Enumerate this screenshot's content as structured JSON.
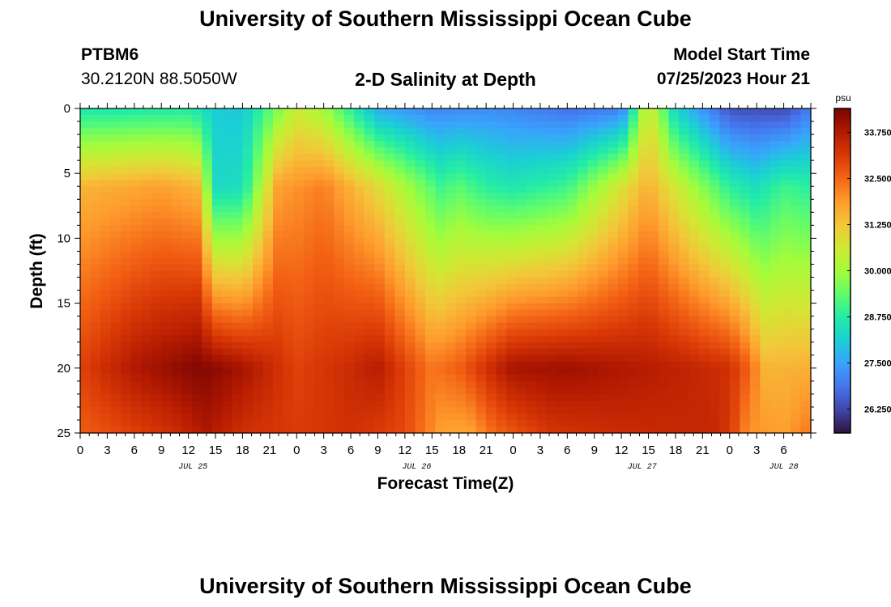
{
  "header": {
    "title": "University of Southern Mississippi Ocean Cube",
    "station_id": "PTBM6",
    "station_coords": "30.2120N  88.5050W",
    "plot_subtitle": "2-D Salinity at Depth",
    "model_start_label": "Model Start Time",
    "model_start_value": "07/25/2023 Hour 21"
  },
  "footer": {
    "title": "University of Southern Mississippi Ocean Cube"
  },
  "chart_data": {
    "type": "heatmap",
    "title": "2-D Salinity at Depth",
    "xlabel": "Forecast Time(Z)",
    "ylabel": "Depth (ft)",
    "x_unit": "hours since model start",
    "x_range": [
      0,
      81
    ],
    "y_range": [
      0,
      25
    ],
    "y_inverted": true,
    "x_tick_labels": [
      "0",
      "3",
      "6",
      "9",
      "12",
      "15",
      "18",
      "21",
      "0",
      "3",
      "6",
      "9",
      "12",
      "15",
      "18",
      "21",
      "0",
      "3",
      "6",
      "9",
      "12",
      "15",
      "18",
      "21",
      "0",
      "3",
      "6"
    ],
    "y_tick_labels": [
      "0",
      "5",
      "10",
      "15",
      "20",
      "25"
    ],
    "y_tick_values": [
      0,
      5,
      10,
      15,
      20,
      25
    ],
    "date_labels": [
      {
        "text": "JUL 25",
        "hour": 12.5
      },
      {
        "text": "JUL 26",
        "hour": 37.3
      },
      {
        "text": "JUL 27",
        "hour": 62.3
      },
      {
        "text": "JUL 28",
        "hour": 78.0
      }
    ],
    "colorbar": {
      "unit": "psu",
      "min": 25.6,
      "max": 34.4,
      "tick_labels": [
        "33.750",
        "32.500",
        "31.250",
        "30.000",
        "28.750",
        "27.500",
        "26.250"
      ],
      "tick_values": [
        33.75,
        32.5,
        31.25,
        30.0,
        28.75,
        27.5,
        26.25
      ],
      "colormap": [
        "#30123b",
        "#4145ab",
        "#4675ed",
        "#39a2fc",
        "#1bcfd4",
        "#24eca6",
        "#61fc6c",
        "#a4fc3b",
        "#d1e834",
        "#f3c63a",
        "#fe9b2d",
        "#f36315",
        "#d93806",
        "#b11901",
        "#7a0402"
      ]
    },
    "grid_cols": 72,
    "grid_rows": 50,
    "note": "Salinity field sampled from the depicted heatmap (psu); values interpolated on a depth x time grid",
    "field_profile": {
      "surface_times": [
        0,
        12,
        15,
        18,
        24,
        27,
        33,
        39,
        45,
        48,
        54,
        60,
        63,
        66,
        72,
        78,
        81
      ],
      "surface_vals": [
        28.6,
        28.7,
        28.1,
        28.0,
        30.5,
        30.0,
        27.6,
        27.1,
        27.2,
        27.1,
        26.8,
        27.0,
        30.8,
        28.2,
        26.4,
        26.3,
        27.0
      ],
      "mid_times": [
        0,
        9,
        13,
        15,
        18,
        22,
        27,
        33,
        40,
        42,
        45,
        48,
        54,
        63,
        66,
        72,
        75,
        78,
        81
      ],
      "mid_vals": [
        31.5,
        31.8,
        31.5,
        28.3,
        28.4,
        31.8,
        32.2,
        30.9,
        29.0,
        29.3,
        28.8,
        28.6,
        29.0,
        31.6,
        30.6,
        28.8,
        28.4,
        29.0,
        28.8
      ],
      "deep_times": [
        0,
        6,
        13,
        15,
        18,
        24,
        30,
        33,
        36,
        39,
        42,
        45,
        48,
        54,
        60,
        66,
        72,
        74,
        76,
        81
      ],
      "deep_vals": [
        33.0,
        33.8,
        34.3,
        34.2,
        33.9,
        33.0,
        33.4,
        33.7,
        33.0,
        32.3,
        32.6,
        33.3,
        33.9,
        34.0,
        33.8,
        33.6,
        33.3,
        32.6,
        31.5,
        31.6
      ],
      "bottom_times": [
        0,
        10,
        14,
        18,
        24,
        30,
        36,
        40,
        43,
        46,
        52,
        60,
        70,
        72,
        74,
        78,
        81
      ],
      "bottom_vals": [
        32.6,
        33.3,
        33.8,
        33.3,
        33.1,
        33.3,
        32.9,
        31.8,
        31.7,
        32.5,
        33.2,
        33.4,
        33.5,
        33.2,
        32.0,
        31.8,
        32.3
      ]
    }
  }
}
